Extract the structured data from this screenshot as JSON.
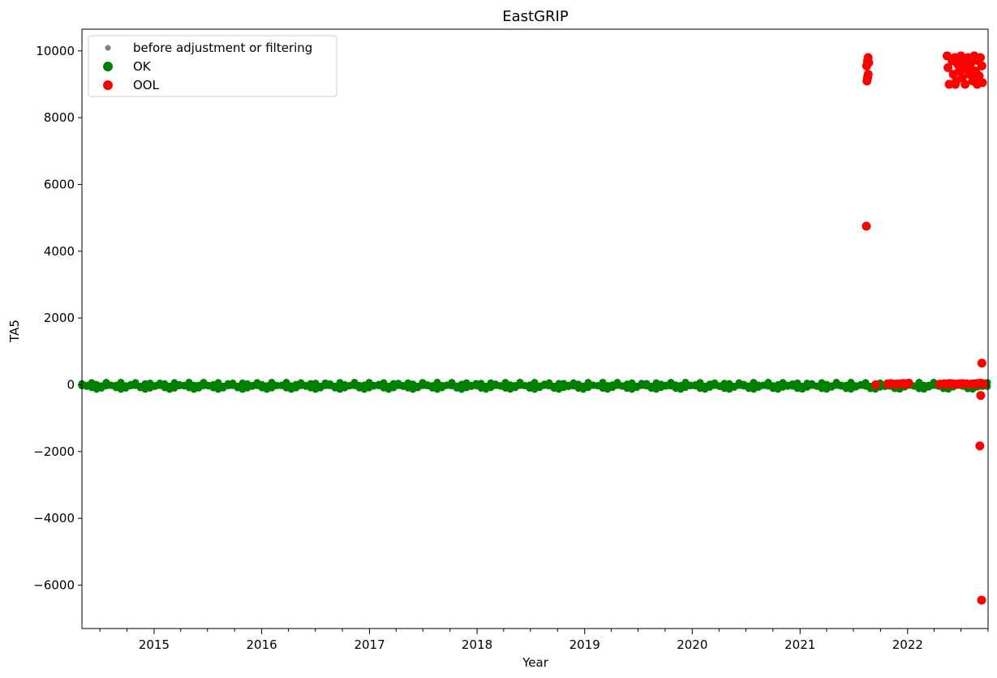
{
  "chart_data": {
    "type": "scatter",
    "title": "EastGRIP",
    "xlabel": "Year",
    "ylabel": "TA5",
    "xlim": [
      "2014-05-01",
      "2022-10-01"
    ],
    "ylim": [
      -7300,
      10650
    ],
    "x_ticks": [
      "2015",
      "2016",
      "2017",
      "2018",
      "2019",
      "2020",
      "2021",
      "2022"
    ],
    "y_ticks": [
      -6000,
      -4000,
      -2000,
      0,
      2000,
      4000,
      6000,
      8000,
      10000
    ],
    "y_tick_labels": [
      "−6000",
      "−4000",
      "−2000",
      "0",
      "2000",
      "4000",
      "6000",
      "8000",
      "10000"
    ],
    "grid": false,
    "legend_position": "top-left",
    "legend": [
      {
        "label": "before adjustment or filtering",
        "color": "#808080",
        "marker": "small-dot"
      },
      {
        "label": "OK",
        "color": "#008000",
        "marker": "circle"
      },
      {
        "label": "OOL",
        "color": "#ff0000",
        "marker": "circle"
      }
    ],
    "series": [
      {
        "name": "OK",
        "color": "#008000",
        "note_band": {
          "start": "2014-05-01",
          "end": "2022-10-01",
          "y_min": -120,
          "y_max": 60
        },
        "points": []
      },
      {
        "name": "OOL",
        "color": "#ff0000",
        "points": [
          {
            "x": "2021-08-15",
            "y": 9550
          },
          {
            "x": "2021-08-17",
            "y": 9600
          },
          {
            "x": "2021-08-18",
            "y": 9700
          },
          {
            "x": "2021-08-20",
            "y": 9800
          },
          {
            "x": "2021-08-22",
            "y": 9650
          },
          {
            "x": "2021-08-20",
            "y": 9300
          },
          {
            "x": "2021-08-16",
            "y": 9100
          },
          {
            "x": "2021-08-18",
            "y": 9200
          },
          {
            "x": "2021-08-14",
            "y": 4750
          },
          {
            "x": "2021-09-15",
            "y": 0
          },
          {
            "x": "2021-10-25",
            "y": 30
          },
          {
            "x": "2021-11-05",
            "y": 40
          },
          {
            "x": "2021-11-20",
            "y": 20
          },
          {
            "x": "2021-12-01",
            "y": 30
          },
          {
            "x": "2021-12-15",
            "y": 40
          },
          {
            "x": "2021-12-25",
            "y": 20
          },
          {
            "x": "2022-01-05",
            "y": 50
          },
          {
            "x": "2022-04-20",
            "y": 20
          },
          {
            "x": "2022-05-05",
            "y": 30
          },
          {
            "x": "2022-05-15",
            "y": 20
          },
          {
            "x": "2022-05-25",
            "y": 40
          },
          {
            "x": "2022-06-05",
            "y": 30
          },
          {
            "x": "2022-06-15",
            "y": 20
          },
          {
            "x": "2022-06-25",
            "y": 30
          },
          {
            "x": "2022-07-05",
            "y": 40
          },
          {
            "x": "2022-07-20",
            "y": 30
          },
          {
            "x": "2022-08-05",
            "y": 20
          },
          {
            "x": "2022-08-15",
            "y": 30
          },
          {
            "x": "2022-08-25",
            "y": 40
          },
          {
            "x": "2022-09-05",
            "y": 50
          },
          {
            "x": "2022-09-15",
            "y": 30
          },
          {
            "x": "2022-05-15",
            "y": 9850
          },
          {
            "x": "2022-05-18",
            "y": 9500
          },
          {
            "x": "2022-05-22",
            "y": 9000
          },
          {
            "x": "2022-06-01",
            "y": 9700
          },
          {
            "x": "2022-06-05",
            "y": 9300
          },
          {
            "x": "2022-06-10",
            "y": 9800
          },
          {
            "x": "2022-06-15",
            "y": 9100
          },
          {
            "x": "2022-06-20",
            "y": 9600
          },
          {
            "x": "2022-06-25",
            "y": 9400
          },
          {
            "x": "2022-07-01",
            "y": 9850
          },
          {
            "x": "2022-07-05",
            "y": 9200
          },
          {
            "x": "2022-07-10",
            "y": 9700
          },
          {
            "x": "2022-07-15",
            "y": 9000
          },
          {
            "x": "2022-07-20",
            "y": 9500
          },
          {
            "x": "2022-07-25",
            "y": 9800
          },
          {
            "x": "2022-07-30",
            "y": 9300
          },
          {
            "x": "2022-08-05",
            "y": 9650
          },
          {
            "x": "2022-08-10",
            "y": 9100
          },
          {
            "x": "2022-08-15",
            "y": 9850
          },
          {
            "x": "2022-08-20",
            "y": 9400
          },
          {
            "x": "2022-08-25",
            "y": 9000
          },
          {
            "x": "2022-08-30",
            "y": 9700
          },
          {
            "x": "2022-09-01",
            "y": 9250
          },
          {
            "x": "2022-09-05",
            "y": 9800
          },
          {
            "x": "2022-09-10",
            "y": 9550
          },
          {
            "x": "2022-09-12",
            "y": 9050
          },
          {
            "x": "2022-06-12",
            "y": 9000
          },
          {
            "x": "2022-07-08",
            "y": 9450
          },
          {
            "x": "2022-08-01",
            "y": 9550
          },
          {
            "x": "2022-08-18",
            "y": 9200
          },
          {
            "x": "2022-09-10",
            "y": 650
          },
          {
            "x": "2022-09-06",
            "y": -320
          },
          {
            "x": "2022-09-03",
            "y": -1830
          },
          {
            "x": "2022-09-09",
            "y": -6450
          }
        ]
      }
    ]
  }
}
